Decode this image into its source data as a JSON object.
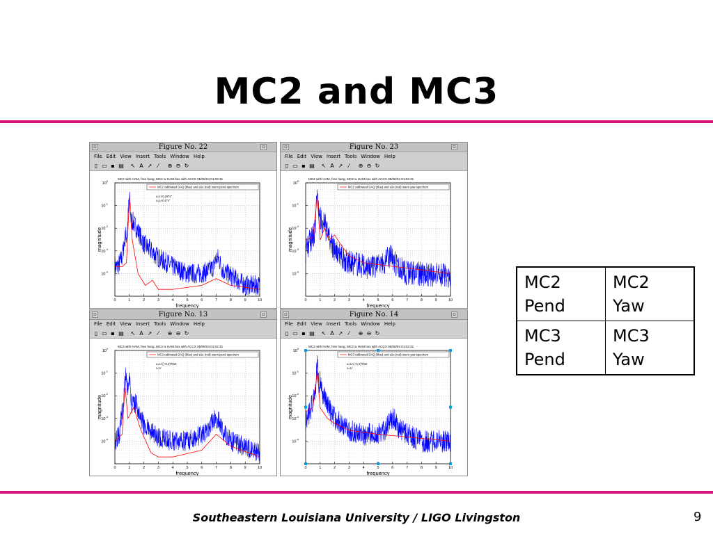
{
  "title": "MC2 and MC3",
  "colors": {
    "accent_rule": "#d4147a",
    "series_blue": "#0000ff",
    "series_red": "#ff0000"
  },
  "figure_window": {
    "menu": [
      "File",
      "Edit",
      "View",
      "Insert",
      "Tools",
      "Window",
      "Help"
    ],
    "toolbar_icons": [
      "new-file-icon",
      "open-folder-icon",
      "save-icon",
      "print-icon",
      "arrow-select-icon",
      "text-insert-icon",
      "arrow-insert-icon",
      "line-insert-icon",
      "zoom-in-icon",
      "zoom-out-icon",
      "rotate-icon"
    ],
    "minimize_glyph": "▫",
    "close_glyph": "▫"
  },
  "figures": [
    {
      "window_title": "Figure No. 22"
    },
    {
      "window_title": "Figure No. 23"
    },
    {
      "window_title": "Figure No. 13"
    },
    {
      "window_title": "Figure No. 14"
    }
  ],
  "chart_data": [
    {
      "type": "line",
      "title": "MC2 with HAM, free hang, MC2 w HAM.box with ACCX 05/06/04 01:02:31",
      "xlabel": "frequency",
      "ylabel": "magnitude",
      "xlim": [
        0,
        10
      ],
      "ylim": [
        1e-05,
        1
      ],
      "yscale": "log",
      "xticks": [
        0,
        1,
        2,
        3,
        4,
        5,
        6,
        7,
        8,
        9,
        10
      ],
      "yticks": [
        1,
        0.1,
        0.01,
        0.001,
        0.0001
      ],
      "ytick_labels": [
        [
          "10",
          "0"
        ],
        [
          "10",
          "-1"
        ],
        [
          "10",
          "-2"
        ],
        [
          "10",
          "-3"
        ],
        [
          "10",
          "-4"
        ]
      ],
      "grid": true,
      "legend_position": "top-right",
      "legend": "MC2 calibrated DAQ (blue) and e2e (red) osem pend spectrum",
      "annotation": [
        "u=U-0.29\"x\"",
        "v=U-0.0\"x\""
      ],
      "series": [
        {
          "name": "blue",
          "color": "#0000ff",
          "noise": 0.45,
          "floor": [
            0.0015,
            6e-05,
            2e-05
          ],
          "peaks": [
            [
              0.75,
              0.003,
              0.12
            ],
            [
              1.0,
              0.12,
              0.06
            ],
            [
              1.2,
              0.004,
              0.15
            ],
            [
              7.1,
              0.0003,
              0.2
            ]
          ],
          "points": [
            [
              0,
              0.0002
            ],
            [
              0.2,
              0.0002
            ],
            [
              0.5,
              0.0005
            ],
            [
              0.8,
              0.002
            ],
            [
              1.0,
              0.1
            ],
            [
              1.1,
              0.02
            ],
            [
              1.5,
              0.01
            ],
            [
              2,
              0.002
            ],
            [
              3,
              0.0005
            ],
            [
              4,
              0.0002
            ],
            [
              5,
              0.0001
            ],
            [
              6,
              0.0001
            ],
            [
              7,
              0.0002
            ],
            [
              8,
              8e-05
            ],
            [
              9,
              3e-05
            ],
            [
              10,
              3e-05
            ]
          ]
        },
        {
          "name": "red",
          "color": "#ff0000",
          "smooth": true,
          "points": [
            [
              0,
              0.0002
            ],
            [
              0.5,
              0.0002
            ],
            [
              0.8,
              0.0003
            ],
            [
              1.0,
              0.2
            ],
            [
              1.2,
              0.003
            ],
            [
              1.6,
              0.0001
            ],
            [
              2.1,
              3e-05
            ],
            [
              2.6,
              5e-05
            ],
            [
              3,
              2e-05
            ],
            [
              4,
              2e-05
            ],
            [
              6,
              3e-05
            ],
            [
              7,
              6e-05
            ],
            [
              8,
              3e-05
            ],
            [
              10,
              2e-05
            ]
          ]
        }
      ]
    },
    {
      "type": "line",
      "title": "MC2 with HAM, free hang, MC2 w HAM.box with ACCX 05/06/04 01:02:31",
      "xlabel": "frequency",
      "ylabel": "magnitude",
      "xlim": [
        0,
        10
      ],
      "ylim": [
        1e-05,
        1
      ],
      "yscale": "log",
      "xticks": [
        0,
        1,
        2,
        3,
        4,
        5,
        6,
        7,
        8,
        9,
        10
      ],
      "yticks": [
        1,
        0.1,
        0.01,
        0.001,
        0.0001
      ],
      "ytick_labels": [
        [
          "10",
          "0"
        ],
        [
          "10",
          "-1"
        ],
        [
          "10",
          "-2"
        ],
        [
          "10",
          "-3"
        ],
        [
          "10",
          "-4"
        ]
      ],
      "grid": true,
      "legend_position": "top-right",
      "legend": "MC2 calibrated DAQ (blue) and e2e (red) osem yaw spectrum",
      "annotation": [],
      "series": [
        {
          "name": "blue",
          "color": "#0000ff",
          "noise": 0.55,
          "floor": [
            0.002,
            0.0002,
            8e-05
          ],
          "peaks": [
            [
              0.8,
              0.2,
              0.06
            ],
            [
              1.05,
              0.01,
              0.08
            ],
            [
              1.3,
              0.006,
              0.1
            ],
            [
              5.8,
              0.0003,
              0.25
            ]
          ],
          "points": [
            [
              0,
              0.001
            ],
            [
              0.3,
              0.003
            ],
            [
              0.6,
              0.005
            ],
            [
              0.8,
              0.2
            ],
            [
              1.0,
              0.02
            ],
            [
              1.3,
              0.01
            ],
            [
              2,
              0.001
            ],
            [
              3,
              0.0003
            ],
            [
              4,
              0.0002
            ],
            [
              5,
              0.0002
            ],
            [
              6,
              0.0003
            ],
            [
              7,
              0.0001
            ],
            [
              8,
              0.0001
            ],
            [
              10,
              8e-05
            ]
          ]
        },
        {
          "name": "red",
          "color": "#ff0000",
          "smooth": true,
          "points": [
            [
              0,
              0.003
            ],
            [
              0.5,
              0.004
            ],
            [
              0.8,
              0.25
            ],
            [
              1.0,
              0.003
            ],
            [
              1.3,
              0.01
            ],
            [
              1.6,
              0.003
            ],
            [
              2,
              0.005
            ],
            [
              2.4,
              0.002
            ],
            [
              3,
              0.0006
            ],
            [
              4,
              0.0003
            ],
            [
              10,
              0.0001
            ]
          ]
        }
      ]
    },
    {
      "type": "line",
      "title": "MC3 with HAM, free hang, MC3 w HAM.box with ACCX 05/06/04 01:02:31",
      "xlabel": "frequency",
      "ylabel": "magnitude",
      "xlim": [
        0,
        10
      ],
      "ylim": [
        1e-05,
        1
      ],
      "yscale": "log",
      "xticks": [
        0,
        1,
        2,
        3,
        4,
        5,
        6,
        7,
        8,
        9,
        10
      ],
      "yticks": [
        1,
        0.1,
        0.01,
        0.001,
        0.0001
      ],
      "ytick_labels": [
        [
          "10",
          "0"
        ],
        [
          "10",
          "-1"
        ],
        [
          "10",
          "-2"
        ],
        [
          "10",
          "-3"
        ],
        [
          "10",
          "-4"
        ]
      ],
      "grid": true,
      "legend_position": "top-right",
      "legend": "MC3 calibrated DAQ (blue) and e2e (red) osem pend spectrum",
      "annotation": [
        "u=U-(~0.2)\"thet",
        "v=V"
      ],
      "series": [
        {
          "name": "blue",
          "color": "#0000ff",
          "noise": 0.45,
          "floor": [
            0.002,
            8e-05,
            2e-05
          ],
          "peaks": [
            [
              0.75,
              0.05,
              0.06
            ],
            [
              1.0,
              0.05,
              0.08
            ],
            [
              1.3,
              0.003,
              0.15
            ],
            [
              7.0,
              0.0005,
              0.35
            ]
          ],
          "points": [
            [
              0,
              0.0001
            ],
            [
              0.3,
              0.0002
            ],
            [
              0.6,
              0.005
            ],
            [
              0.75,
              0.05
            ],
            [
              1.0,
              0.005
            ],
            [
              1.2,
              0.001
            ],
            [
              1.5,
              0.004
            ],
            [
              2,
              0.0005
            ],
            [
              3,
              0.00015
            ],
            [
              4,
              0.0001
            ],
            [
              5,
              0.0001
            ],
            [
              6,
              0.0002
            ],
            [
              7,
              0.0005
            ],
            [
              8,
              0.0001
            ],
            [
              10,
              3e-05
            ]
          ]
        },
        {
          "name": "red",
          "color": "#ff0000",
          "smooth": true,
          "points": [
            [
              0,
              0.0001
            ],
            [
              0.5,
              0.0002
            ],
            [
              0.7,
              0.03
            ],
            [
              0.9,
              0.001
            ],
            [
              1.3,
              0.003
            ],
            [
              1.8,
              0.0003
            ],
            [
              2.5,
              3e-05
            ],
            [
              3,
              2e-05
            ],
            [
              4,
              2e-05
            ],
            [
              6,
              4e-05
            ],
            [
              7,
              0.0002
            ],
            [
              8,
              6e-05
            ],
            [
              10,
              2e-05
            ]
          ]
        }
      ]
    },
    {
      "type": "line",
      "title": "MC3 with HAM, free hang, MC3 w HAM.box with ACCX 05/06/04 01:02:31",
      "xlabel": "frequency",
      "ylabel": "magnitude",
      "xlim": [
        0,
        10
      ],
      "ylim": [
        1e-05,
        1
      ],
      "yscale": "log",
      "xticks": [
        0,
        1,
        2,
        3,
        4,
        5,
        6,
        7,
        8,
        9,
        10
      ],
      "yticks": [
        1,
        0.1,
        0.01,
        0.001,
        0.0001
      ],
      "ytick_labels": [
        [
          "10",
          "0"
        ],
        [
          "10",
          "-1"
        ],
        [
          "10",
          "-2"
        ],
        [
          "10",
          "-3"
        ],
        [
          "10",
          "-4"
        ]
      ],
      "grid": true,
      "legend_position": "top-right",
      "legend": "MC3 calibrated DAQ (blue) and e2e (red) osem yaw spectrum",
      "annotation": [
        "u=U-(~0.2)\"thet",
        "v=U"
      ],
      "series": [
        {
          "name": "blue",
          "color": "#0000ff",
          "noise": 0.5,
          "floor": [
            0.002,
            0.0002,
            0.0001
          ],
          "peaks": [
            [
              0.8,
              0.1,
              0.05
            ],
            [
              1.0,
              0.03,
              0.08
            ],
            [
              1.3,
              0.004,
              0.2
            ],
            [
              6.0,
              0.0005,
              0.3
            ]
          ],
          "points": [
            [
              0,
              0.001
            ],
            [
              0.3,
              0.002
            ],
            [
              0.6,
              0.01
            ],
            [
              0.8,
              0.1
            ],
            [
              1.0,
              0.01
            ],
            [
              1.5,
              0.003
            ],
            [
              2,
              0.001
            ],
            [
              3,
              0.0003
            ],
            [
              4,
              0.0002
            ],
            [
              5,
              0.0002
            ],
            [
              6,
              0.0005
            ],
            [
              7,
              0.0002
            ],
            [
              8,
              0.0001
            ],
            [
              10,
              0.0001
            ]
          ]
        },
        {
          "name": "red",
          "color": "#ff0000",
          "smooth": true,
          "points": [
            [
              0,
              0.002
            ],
            [
              0.5,
              0.003
            ],
            [
              0.8,
              0.12
            ],
            [
              1.0,
              0.003
            ],
            [
              1.5,
              0.001
            ],
            [
              2,
              0.0006
            ],
            [
              3,
              0.0003
            ],
            [
              5,
              0.0002
            ],
            [
              10,
              0.0001
            ]
          ]
        }
      ]
    }
  ],
  "table": {
    "rows": [
      [
        {
          "line1": "MC2",
          "line2": "Pend"
        },
        {
          "line1": "MC2",
          "line2": "Yaw"
        }
      ],
      [
        {
          "line1": "MC3",
          "line2": "Pend"
        },
        {
          "line1": "MC3",
          "line2": "Yaw"
        }
      ]
    ]
  },
  "footer": "Southeastern Louisiana University / LIGO Livingston",
  "page_number": "9"
}
